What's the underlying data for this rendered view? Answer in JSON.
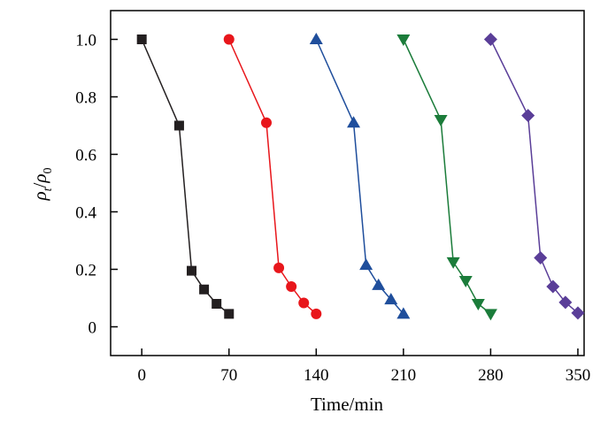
{
  "chart_data": {
    "type": "line",
    "xlabel": "Time/min",
    "ylabel": "ρt/ρ0",
    "ylabel_parts": {
      "base1": "ρ",
      "sub1": "t",
      "sep": "/",
      "base2": "ρ",
      "sub2": "0"
    },
    "xlim": [
      -25,
      355
    ],
    "ylim": [
      -0.1,
      1.1
    ],
    "xticks": [
      0,
      70,
      140,
      210,
      280,
      350
    ],
    "xtick_labels": [
      "0",
      "70",
      "140",
      "210",
      "280",
      "350"
    ],
    "yticks": [
      0,
      0.2,
      0.4,
      0.6,
      0.8,
      1.0
    ],
    "ytick_labels": [
      "0",
      "0.2",
      "0.4",
      "0.6",
      "0.8",
      "1.0"
    ],
    "grid": false,
    "series": [
      {
        "marker": "square",
        "color": "#231f20",
        "x": [
          0,
          30,
          40,
          50,
          60,
          70
        ],
        "y": [
          1.0,
          0.7,
          0.195,
          0.13,
          0.08,
          0.045
        ]
      },
      {
        "marker": "circle",
        "color": "#e8161b",
        "x": [
          70,
          100,
          110,
          120,
          130,
          140
        ],
        "y": [
          1.0,
          0.71,
          0.205,
          0.14,
          0.083,
          0.045
        ]
      },
      {
        "marker": "triangle-up",
        "color": "#1f4e9c",
        "x": [
          140,
          170,
          180,
          190,
          200,
          210
        ],
        "y": [
          1.0,
          0.71,
          0.215,
          0.145,
          0.095,
          0.045
        ]
      },
      {
        "marker": "triangle-down",
        "color": "#1b7c3a",
        "x": [
          210,
          240,
          250,
          260,
          270,
          280
        ],
        "y": [
          1.0,
          0.72,
          0.225,
          0.16,
          0.08,
          0.045
        ]
      },
      {
        "marker": "diamond",
        "color": "#5a3e98",
        "x": [
          280,
          310,
          320,
          330,
          340,
          350
        ],
        "y": [
          1.0,
          0.735,
          0.24,
          0.14,
          0.085,
          0.048
        ]
      }
    ]
  }
}
